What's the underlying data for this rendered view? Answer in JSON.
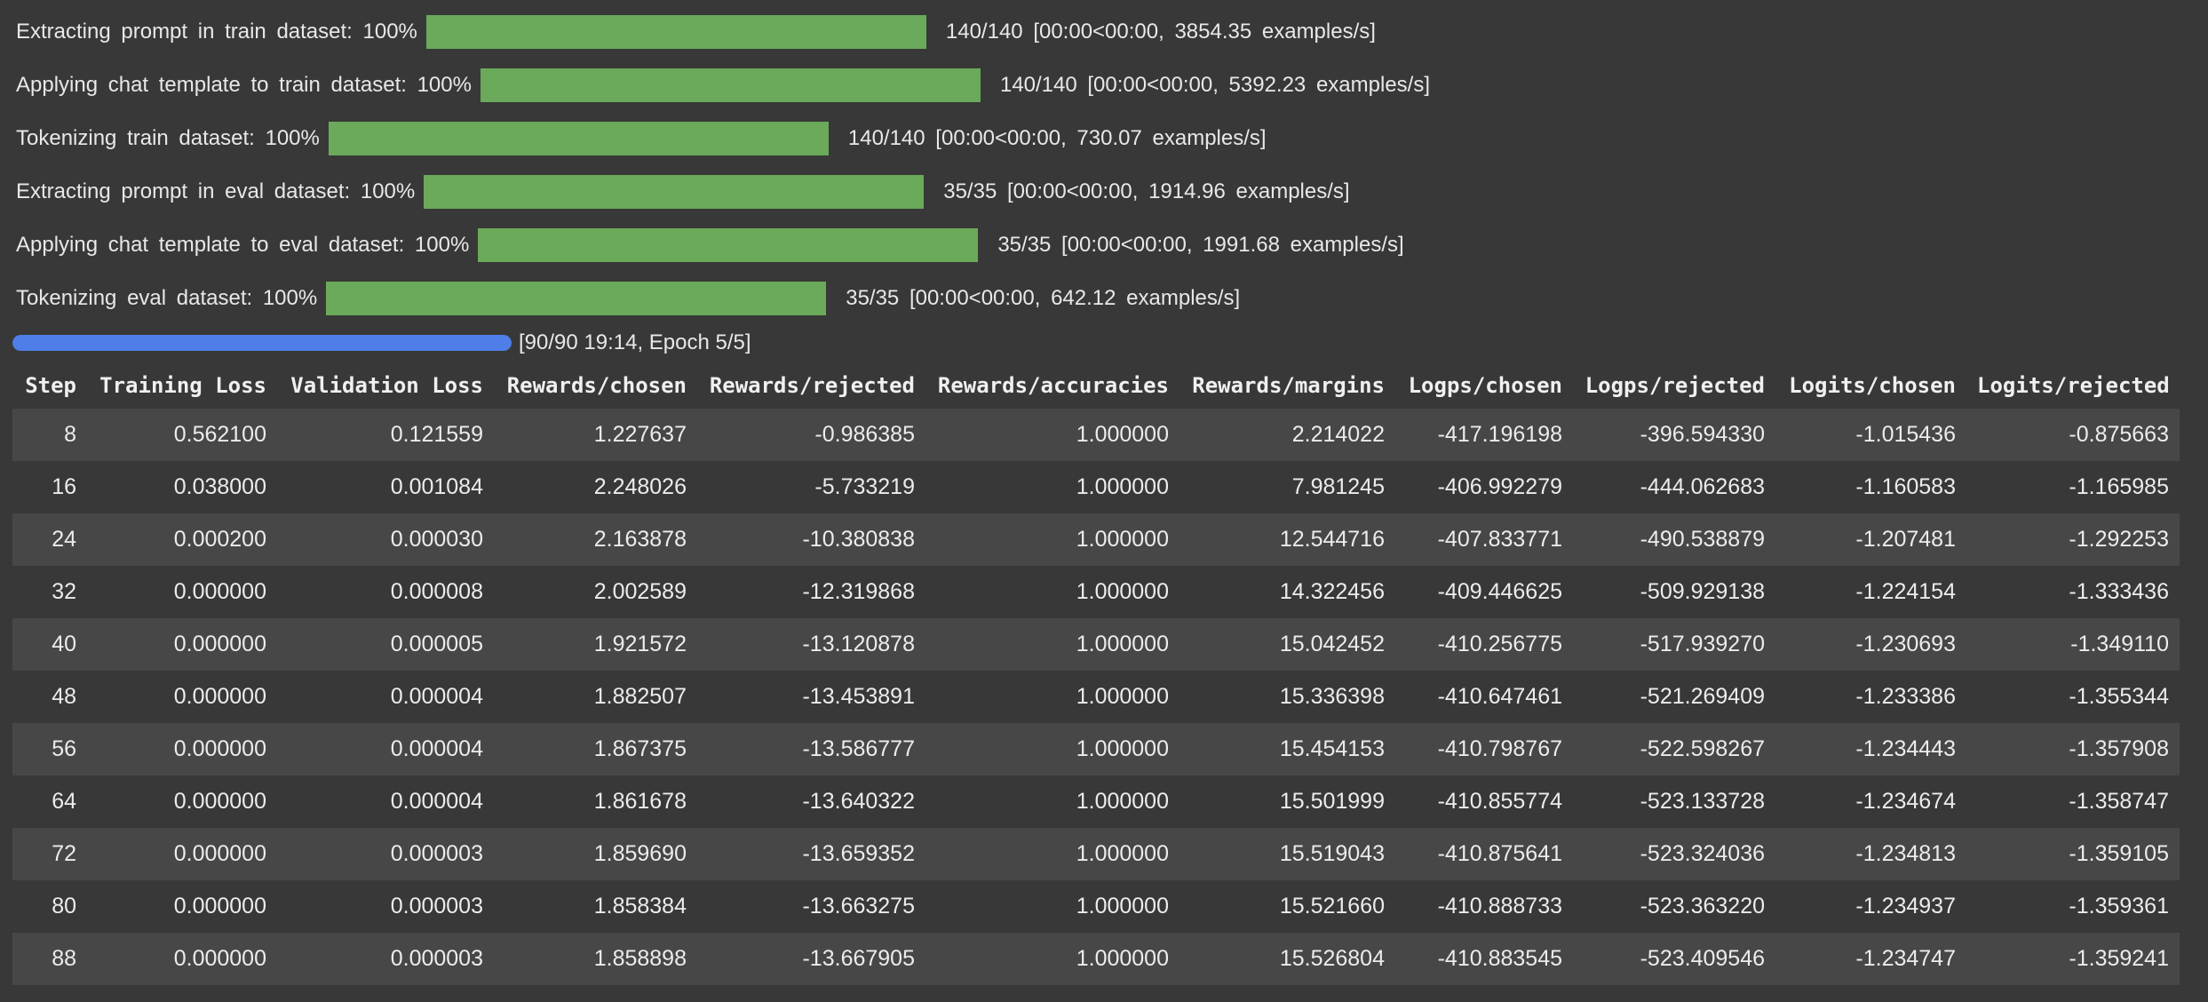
{
  "progress_bars": [
    {
      "label": "Extracting prompt in train dataset: 100%",
      "fraction": 1.0,
      "stats": "140/140 [00:00<00:00, 3854.35 examples/s]"
    },
    {
      "label": "Applying chat template to train dataset: 100%",
      "fraction": 1.0,
      "stats": "140/140 [00:00<00:00, 5392.23 examples/s]"
    },
    {
      "label": "Tokenizing train dataset: 100%",
      "fraction": 1.0,
      "stats": "140/140 [00:00<00:00, 730.07 examples/s]"
    },
    {
      "label": "Extracting prompt in eval dataset: 100%",
      "fraction": 1.0,
      "stats": "35/35 [00:00<00:00, 1914.96 examples/s]"
    },
    {
      "label": "Applying chat template to eval dataset: 100%",
      "fraction": 1.0,
      "stats": "35/35 [00:00<00:00, 1991.68 examples/s]"
    },
    {
      "label": "Tokenizing eval dataset: 100%",
      "fraction": 1.0,
      "stats": "35/35 [00:00<00:00, 642.12 examples/s]"
    }
  ],
  "training": {
    "fraction": 1.0,
    "status": "[90/90 19:14, Epoch 5/5]"
  },
  "table": {
    "headers": [
      "Step",
      "Training Loss",
      "Validation Loss",
      "Rewards/chosen",
      "Rewards/rejected",
      "Rewards/accuracies",
      "Rewards/margins",
      "Logps/chosen",
      "Logps/rejected",
      "Logits/chosen",
      "Logits/rejected"
    ],
    "rows": [
      [
        "8",
        "0.562100",
        "0.121559",
        "1.227637",
        "-0.986385",
        "1.000000",
        "2.214022",
        "-417.196198",
        "-396.594330",
        "-1.015436",
        "-0.875663"
      ],
      [
        "16",
        "0.038000",
        "0.001084",
        "2.248026",
        "-5.733219",
        "1.000000",
        "7.981245",
        "-406.992279",
        "-444.062683",
        "-1.160583",
        "-1.165985"
      ],
      [
        "24",
        "0.000200",
        "0.000030",
        "2.163878",
        "-10.380838",
        "1.000000",
        "12.544716",
        "-407.833771",
        "-490.538879",
        "-1.207481",
        "-1.292253"
      ],
      [
        "32",
        "0.000000",
        "0.000008",
        "2.002589",
        "-12.319868",
        "1.000000",
        "14.322456",
        "-409.446625",
        "-509.929138",
        "-1.224154",
        "-1.333436"
      ],
      [
        "40",
        "0.000000",
        "0.000005",
        "1.921572",
        "-13.120878",
        "1.000000",
        "15.042452",
        "-410.256775",
        "-517.939270",
        "-1.230693",
        "-1.349110"
      ],
      [
        "48",
        "0.000000",
        "0.000004",
        "1.882507",
        "-13.453891",
        "1.000000",
        "15.336398",
        "-410.647461",
        "-521.269409",
        "-1.233386",
        "-1.355344"
      ],
      [
        "56",
        "0.000000",
        "0.000004",
        "1.867375",
        "-13.586777",
        "1.000000",
        "15.454153",
        "-410.798767",
        "-522.598267",
        "-1.234443",
        "-1.357908"
      ],
      [
        "64",
        "0.000000",
        "0.000004",
        "1.861678",
        "-13.640322",
        "1.000000",
        "15.501999",
        "-410.855774",
        "-523.133728",
        "-1.234674",
        "-1.358747"
      ],
      [
        "72",
        "0.000000",
        "0.000003",
        "1.859690",
        "-13.659352",
        "1.000000",
        "15.519043",
        "-410.875641",
        "-523.324036",
        "-1.234813",
        "-1.359105"
      ],
      [
        "80",
        "0.000000",
        "0.000003",
        "1.858384",
        "-13.663275",
        "1.000000",
        "15.521660",
        "-410.888733",
        "-523.363220",
        "-1.234937",
        "-1.359361"
      ],
      [
        "88",
        "0.000000",
        "0.000003",
        "1.858898",
        "-13.667905",
        "1.000000",
        "15.526804",
        "-410.883545",
        "-523.409546",
        "-1.234747",
        "-1.359241"
      ]
    ]
  },
  "colors": {
    "background": "#383838",
    "progress_green": "#6aaa5a",
    "progress_blue": "#4f7ee8",
    "row_stripe": "#474747"
  }
}
